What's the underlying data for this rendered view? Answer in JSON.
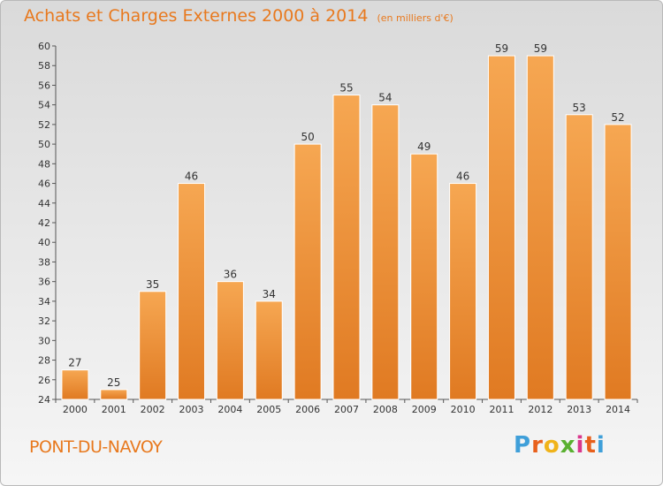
{
  "header": {
    "title": "Achats et Charges Externes 2000 à 2014",
    "unit": "(en milliers d'€)"
  },
  "footer": {
    "commune": "PONT-DU-NAVOY",
    "logo": {
      "letters": [
        "P",
        "r",
        "o",
        "x",
        "i",
        "t",
        "i"
      ],
      "colors": [
        "#3f9fd9",
        "#e8601c",
        "#f0b31a",
        "#5ab031",
        "#d9368c",
        "#e8601c",
        "#3f9fd9"
      ]
    }
  },
  "colors": {
    "bar_light": "#f6a752",
    "bar_dark": "#e07a22",
    "title": "#e8791e"
  },
  "chart_data": {
    "type": "bar",
    "title": "Achats et Charges Externes 2000 à 2014",
    "subtitle": "(en milliers d'€)",
    "categories": [
      "2000",
      "2001",
      "2002",
      "2003",
      "2004",
      "2005",
      "2006",
      "2007",
      "2008",
      "2009",
      "2010",
      "2011",
      "2012",
      "2013",
      "2014"
    ],
    "values": [
      27,
      25,
      35,
      46,
      36,
      34,
      50,
      55,
      54,
      49,
      46,
      59,
      59,
      53,
      52
    ],
    "ylim": [
      24,
      60
    ],
    "yticks": [
      24,
      26,
      28,
      30,
      32,
      34,
      36,
      38,
      40,
      42,
      44,
      46,
      48,
      50,
      52,
      54,
      56,
      58,
      60
    ],
    "grid": false,
    "legend": "none"
  }
}
